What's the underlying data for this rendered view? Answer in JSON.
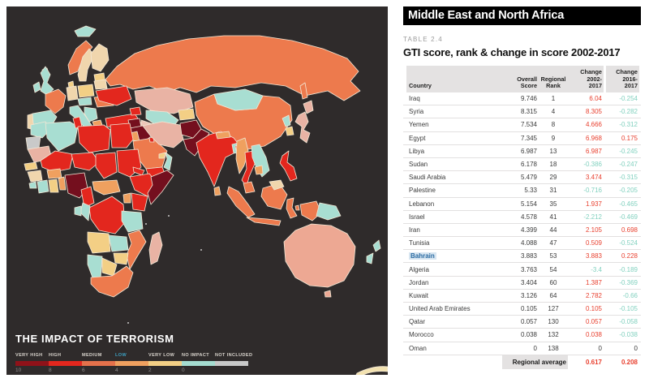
{
  "map": {
    "title": "THE IMPACT OF TERRORISM",
    "legend": {
      "items": [
        {
          "label": "VERY HIGH",
          "color": "#8f1219",
          "label_color": "#d9d4cd"
        },
        {
          "label": "HIGH",
          "color": "#e3271e",
          "label_color": "#d9d4cd"
        },
        {
          "label": "MEDIUM",
          "color": "#e4714b",
          "label_color": "#d9d4cd"
        },
        {
          "label": "LOW",
          "color": "#efa05f",
          "label_color": "#3d9fc0"
        },
        {
          "label": "VERY LOW",
          "color": "#f3cf85",
          "label_color": "#d9d4cd"
        },
        {
          "label": "NO IMPACT",
          "color": "#a5dcd0",
          "label_color": "#d9d4cd"
        },
        {
          "label": "NOT INCLUDED",
          "color": "#c8c8c8",
          "label_color": "#d9d4cd"
        }
      ],
      "scale": [
        "10",
        "8",
        "6",
        "4",
        "2",
        "0"
      ]
    }
  },
  "panel": {
    "region_title": "Middle East and North Africa",
    "table_label": "TABLE 2.4",
    "table_title": "GTI score, rank & change in score 2002-2017",
    "columns": {
      "country": "Country",
      "score": "Overall\nScore",
      "rank": "Regional\nRank",
      "change_2002": "Change\n2002-\n2017",
      "change_2016": "Change\n2016-\n2017"
    },
    "rows": [
      {
        "country": "Iraq",
        "score": "9.746",
        "rank": "1",
        "change_2002": "6.04",
        "change_2016": "-0.254"
      },
      {
        "country": "Syria",
        "score": "8.315",
        "rank": "4",
        "change_2002": "8.305",
        "change_2016": "-0.282"
      },
      {
        "country": "Yemen",
        "score": "7.534",
        "rank": "8",
        "change_2002": "4.666",
        "change_2016": "-0.312"
      },
      {
        "country": "Egypt",
        "score": "7.345",
        "rank": "9",
        "change_2002": "6.968",
        "change_2016": "0.175"
      },
      {
        "country": "Libya",
        "score": "6.987",
        "rank": "13",
        "change_2002": "6.987",
        "change_2016": "-0.245"
      },
      {
        "country": "Sudan",
        "score": "6.178",
        "rank": "18",
        "change_2002": "-0.386",
        "change_2016": "-0.247"
      },
      {
        "country": "Saudi Arabia",
        "score": "5.479",
        "rank": "29",
        "change_2002": "3.474",
        "change_2016": "-0.315"
      },
      {
        "country": "Palestine",
        "score": "5.33",
        "rank": "31",
        "change_2002": "-0.716",
        "change_2016": "-0.205"
      },
      {
        "country": "Lebanon",
        "score": "5.154",
        "rank": "35",
        "change_2002": "1.937",
        "change_2016": "-0.465"
      },
      {
        "country": "Israel",
        "score": "4.578",
        "rank": "41",
        "change_2002": "-2.212",
        "change_2016": "-0.469"
      },
      {
        "country": "Iran",
        "score": "4.399",
        "rank": "44",
        "change_2002": "2.105",
        "change_2016": "0.698"
      },
      {
        "country": "Tunisia",
        "score": "4.088",
        "rank": "47",
        "change_2002": "0.509",
        "change_2016": "-0.524"
      },
      {
        "country": "Bahrain",
        "score": "3.883",
        "rank": "53",
        "change_2002": "3.883",
        "change_2016": "0.228",
        "highlight": true
      },
      {
        "country": "Algeria",
        "score": "3.763",
        "rank": "54",
        "change_2002": "-3.4",
        "change_2016": "-0.189"
      },
      {
        "country": "Jordan",
        "score": "3.404",
        "rank": "60",
        "change_2002": "1.387",
        "change_2016": "-0.369"
      },
      {
        "country": "Kuwait",
        "score": "3.126",
        "rank": "64",
        "change_2002": "2.782",
        "change_2016": "-0.66"
      },
      {
        "country": "United Arab Emirates",
        "score": "0.105",
        "rank": "127",
        "change_2002": "0.105",
        "change_2016": "-0.105"
      },
      {
        "country": "Qatar",
        "score": "0.057",
        "rank": "130",
        "change_2002": "0.057",
        "change_2016": "-0.058"
      },
      {
        "country": "Morocco",
        "score": "0.038",
        "rank": "132",
        "change_2002": "0.038",
        "change_2016": "-0.038"
      },
      {
        "country": "Oman",
        "score": "0",
        "rank": "138",
        "change_2002": "0",
        "change_2016": "0"
      }
    ],
    "footer": {
      "label": "Regional average",
      "change_2002": "0.617",
      "change_2016": "0.208"
    },
    "colors": {
      "positive": "#e8402f",
      "negative": "#82d1bf",
      "neutral": "#3b3b3b",
      "highlight_text": "#2b6ca3",
      "highlight_bg": "#d8e6f1"
    }
  }
}
